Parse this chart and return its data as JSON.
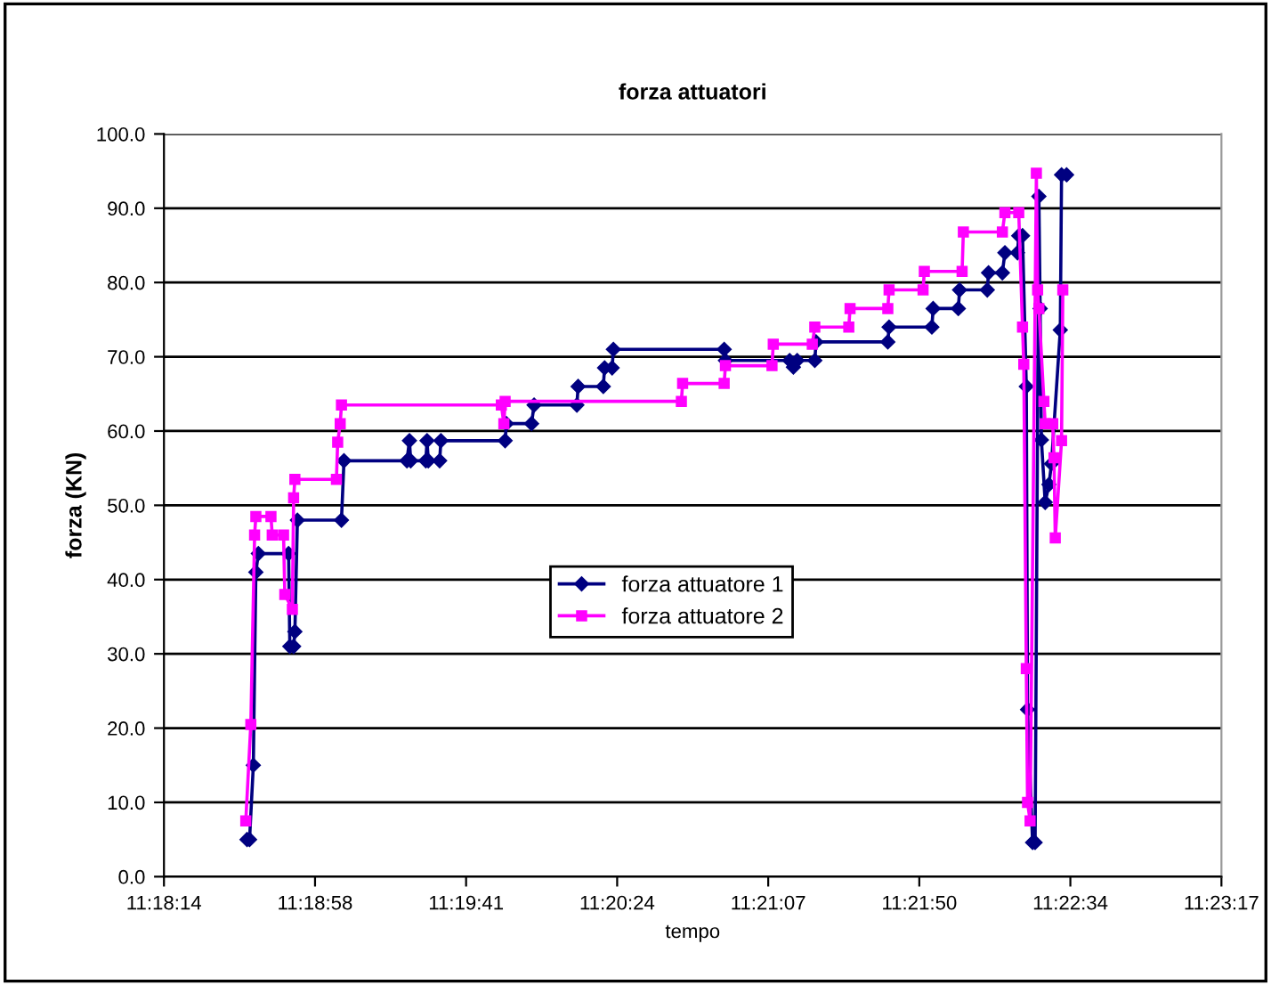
{
  "chart_data": {
    "type": "line",
    "title": "forza attuatori",
    "xlabel": "tempo",
    "ylabel": "forza (KN)",
    "xlim": [
      11.304,
      11.388
    ],
    "xticks": [
      {
        "value": 11.304,
        "label": "11:18:14"
      },
      {
        "value": 11.316,
        "label": "11:18:58"
      },
      {
        "value": 11.328,
        "label": "11:19:41"
      },
      {
        "value": 11.34,
        "label": "11:20:24"
      },
      {
        "value": 11.352,
        "label": "11:21:07"
      },
      {
        "value": 11.364,
        "label": "11:21:50"
      },
      {
        "value": 11.376,
        "label": "11:22:34"
      },
      {
        "value": 11.388,
        "label": "11:23:17"
      }
    ],
    "ylim": [
      0,
      100
    ],
    "yticks": [
      {
        "value": 0,
        "label": "0.0"
      },
      {
        "value": 10,
        "label": "10.0"
      },
      {
        "value": 20,
        "label": "20.0"
      },
      {
        "value": 30,
        "label": "30.0"
      },
      {
        "value": 40,
        "label": "40.0"
      },
      {
        "value": 50,
        "label": "50.0"
      },
      {
        "value": 60,
        "label": "60.0"
      },
      {
        "value": 70,
        "label": "70.0"
      },
      {
        "value": 80,
        "label": "80.0"
      },
      {
        "value": 90,
        "label": "90.0"
      },
      {
        "value": 100,
        "label": "100.0"
      }
    ],
    "grid": "y",
    "legend": "center",
    "line_style": "solid",
    "series": [
      {
        "name": "forza attuatore 1",
        "color": "#000080",
        "marker": "diamond",
        "x": [
          11.3106,
          11.3108,
          11.3111,
          11.3113,
          11.3115,
          11.3139,
          11.314,
          11.3143,
          11.3144,
          11.3146,
          11.3181,
          11.3183,
          11.3233,
          11.3235,
          11.3236,
          11.3248,
          11.3249,
          11.325,
          11.3259,
          11.326,
          11.3311,
          11.3312,
          11.3332,
          11.3334,
          11.3368,
          11.3369,
          11.3389,
          11.339,
          11.3396,
          11.3397,
          11.3485,
          11.3486,
          11.3537,
          11.354,
          11.3543,
          11.3557,
          11.3558,
          11.3615,
          11.3616,
          11.365,
          11.3651,
          11.3671,
          11.3672,
          11.3694,
          11.3695,
          11.3706,
          11.3708,
          11.3718,
          11.3719,
          11.3722,
          11.3725,
          11.3726,
          11.373,
          11.3732,
          11.3735,
          11.3736,
          11.3737,
          11.374,
          11.3743,
          11.3745,
          11.3752,
          11.3753,
          11.3757
        ],
        "values": [
          5,
          5,
          15,
          41,
          43.5,
          43.5,
          31,
          31,
          33,
          48,
          48,
          56,
          56,
          58.7,
          56,
          56,
          58.7,
          56,
          56,
          58.7,
          58.7,
          61,
          61,
          63.5,
          63.5,
          66,
          66,
          68.5,
          68.5,
          71,
          71,
          69.5,
          69.5,
          68.6,
          69.5,
          69.5,
          72,
          72,
          74,
          74,
          76.5,
          76.5,
          79,
          79,
          81.3,
          81.3,
          84,
          84,
          86.3,
          86.3,
          66,
          22.5,
          4.6,
          4.6,
          91.6,
          76.5,
          58.8,
          50.4,
          52.8,
          55.6,
          73.6,
          94.5,
          94.5
        ]
      },
      {
        "name": "forza attuatore 2",
        "color": "#ff00ff",
        "marker": "square",
        "x": [
          11.3105,
          11.3109,
          11.3112,
          11.3113,
          11.3125,
          11.3126,
          11.3135,
          11.3136,
          11.3142,
          11.3143,
          11.3144,
          11.3177,
          11.3178,
          11.318,
          11.3181,
          11.3308,
          11.331,
          11.3311,
          11.3451,
          11.3452,
          11.3485,
          11.3486,
          11.3523,
          11.3524,
          11.3555,
          11.3557,
          11.3584,
          11.3585,
          11.3615,
          11.3616,
          11.3643,
          11.3644,
          11.3674,
          11.3675,
          11.3706,
          11.3708,
          11.3719,
          11.3722,
          11.3723,
          11.3725,
          11.3726,
          11.3728,
          11.3733,
          11.3734,
          11.3735,
          11.3739,
          11.374,
          11.3746,
          11.3747,
          11.3748,
          11.3753,
          11.3754
        ],
        "values": [
          7.5,
          20.5,
          46,
          48.5,
          48.5,
          46,
          46,
          38,
          36,
          51,
          53.5,
          53.5,
          58.5,
          61,
          63.5,
          63.5,
          61,
          64,
          64,
          66.4,
          66.4,
          68.8,
          68.8,
          71.7,
          71.7,
          74,
          74,
          76.5,
          76.5,
          79,
          79,
          81.5,
          81.5,
          86.8,
          86.8,
          89.4,
          89.4,
          74,
          69,
          28,
          10,
          7.5,
          94.7,
          79,
          76.5,
          64,
          61,
          61,
          56.4,
          45.6,
          58.7,
          79
        ]
      }
    ]
  }
}
